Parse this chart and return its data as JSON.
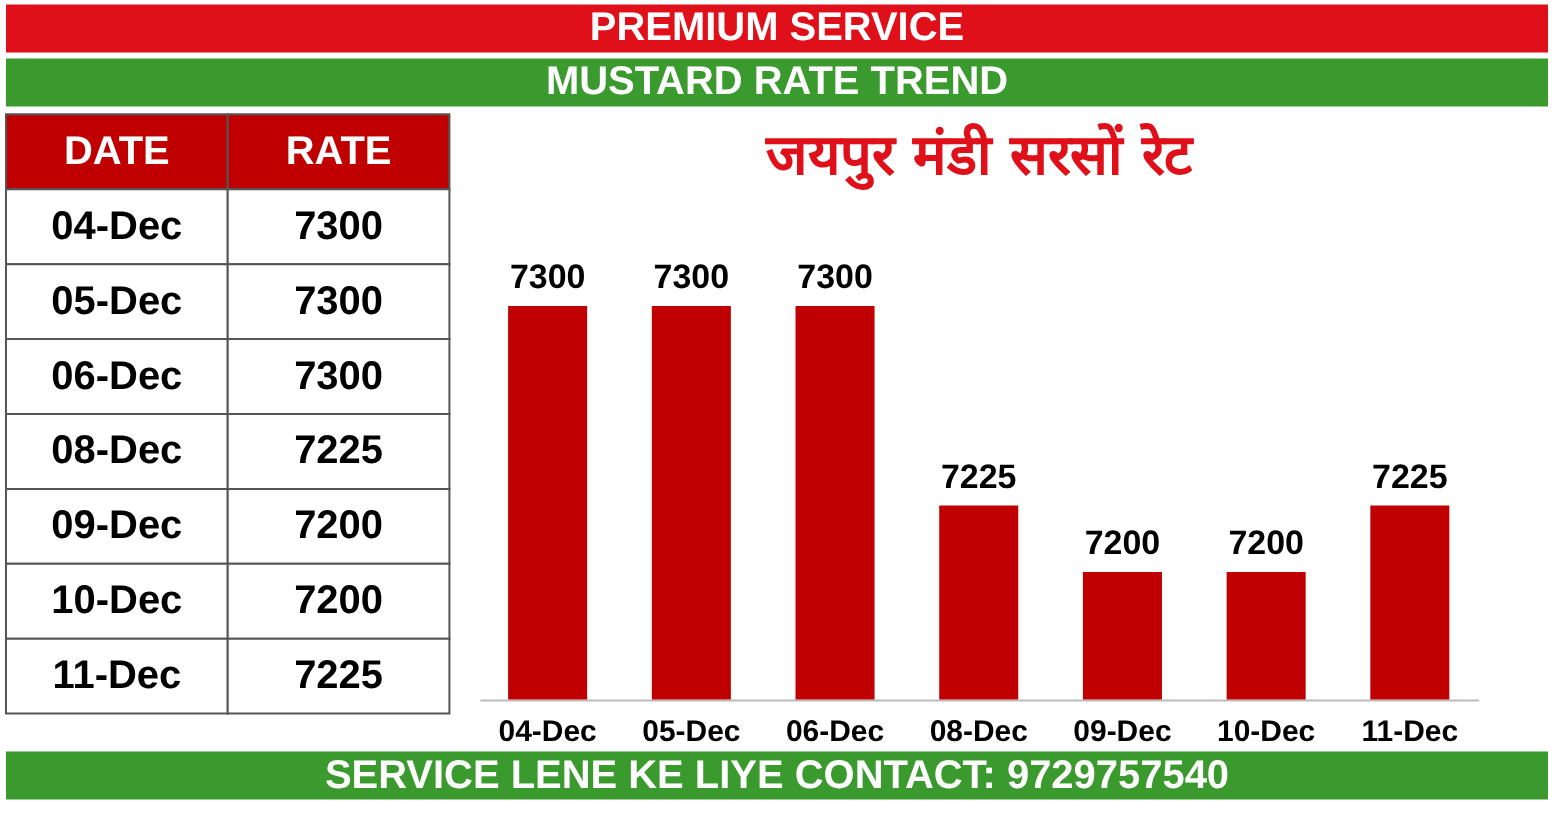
{
  "chart_data": [
    {
      "type": "other",
      "annotations": [
        "DATE",
        "RATE"
      ],
      "categories": [
        "04-Dec",
        "05-Dec",
        "06-Dec",
        "08-Dec",
        "09-Dec",
        "10-Dec",
        "11-Dec"
      ],
      "values": [
        7300,
        7300,
        7300,
        7225,
        7200,
        7200,
        7225
      ],
      "data_labels": true
    },
    {
      "type": "bar",
      "title": "MUSTARD RATE TREND",
      "subtitle": "जयपुर मंडी सरसों रेट",
      "annotations": [
        "PREMIUM SERVICE",
        "SERVICE LENE KE LIYE CONTACT: 9729757540"
      ],
      "categories": [
        "04-Dec",
        "05-Dec",
        "06-Dec",
        "08-Dec",
        "09-Dec",
        "10-Dec",
        "11-Dec"
      ],
      "values": [
        7300,
        7300,
        7300,
        7225,
        7200,
        7200,
        7225
      ],
      "color": "#c00000",
      "ylim": [
        7152,
        7300
      ],
      "tick_labels": "x",
      "data_labels": true
    }
  ]
}
